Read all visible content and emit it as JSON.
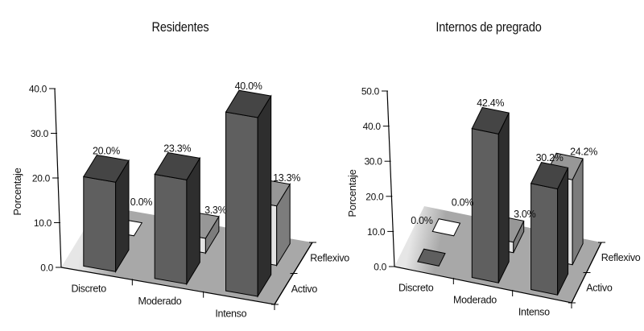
{
  "figure": {
    "background": "#ffffff"
  },
  "palette": {
    "dark_front": "#5f5f5f",
    "dark_top": "#454545",
    "dark_side": "#2e2e2e",
    "light_front": "#e3e3e3",
    "light_top": "#979797",
    "light_side": "#7c7c7c",
    "zero_pad_light": "#ffffff",
    "floor": "#a8a8a8",
    "floor_edge_light": "#e6e6e6",
    "outline": "#000000",
    "text": "#111111"
  },
  "chart_data": [
    {
      "type": "bar",
      "projection": "3d",
      "title": "Residentes",
      "ylabel": "Porcentaje",
      "categories": [
        "Discreto",
        "Moderado",
        "Intenso"
      ],
      "series": [
        {
          "name": "Activo",
          "shade": "dark",
          "values": [
            20.0,
            23.3,
            40.0
          ],
          "labels": [
            "20.0%",
            "23.3%",
            "40.0%"
          ]
        },
        {
          "name": "Reflexivo",
          "shade": "light",
          "values": [
            0.0,
            3.3,
            13.3
          ],
          "labels": [
            "0.0%",
            "3.3%",
            "13.3%"
          ]
        }
      ],
      "ylim": [
        0,
        40
      ],
      "ytick_step": 10,
      "ytick_labels": [
        "0.0",
        "10.0",
        "20.0",
        "30.0",
        "40.0"
      ],
      "grid": false,
      "legend": "none (series named on depth axis)"
    },
    {
      "type": "bar",
      "projection": "3d",
      "title": "Internos de pregrado",
      "ylabel": "Porcentaje",
      "categories": [
        "Discreto",
        "Moderado",
        "Intenso"
      ],
      "series": [
        {
          "name": "Activo",
          "shade": "dark",
          "values": [
            0.0,
            42.4,
            30.2
          ],
          "labels": [
            "0.0%",
            "42.4%",
            "30.2%"
          ]
        },
        {
          "name": "Reflexivo",
          "shade": "light",
          "values": [
            0.0,
            3.0,
            24.2
          ],
          "labels": [
            "0.0%",
            "3.0%",
            "24.2%"
          ]
        }
      ],
      "ylim": [
        0,
        50
      ],
      "ytick_step": 10,
      "ytick_labels": [
        "0.0",
        "10.0",
        "20.0",
        "30.0",
        "40.0",
        "50.0"
      ],
      "grid": false,
      "legend": "none (series named on depth axis)"
    }
  ]
}
